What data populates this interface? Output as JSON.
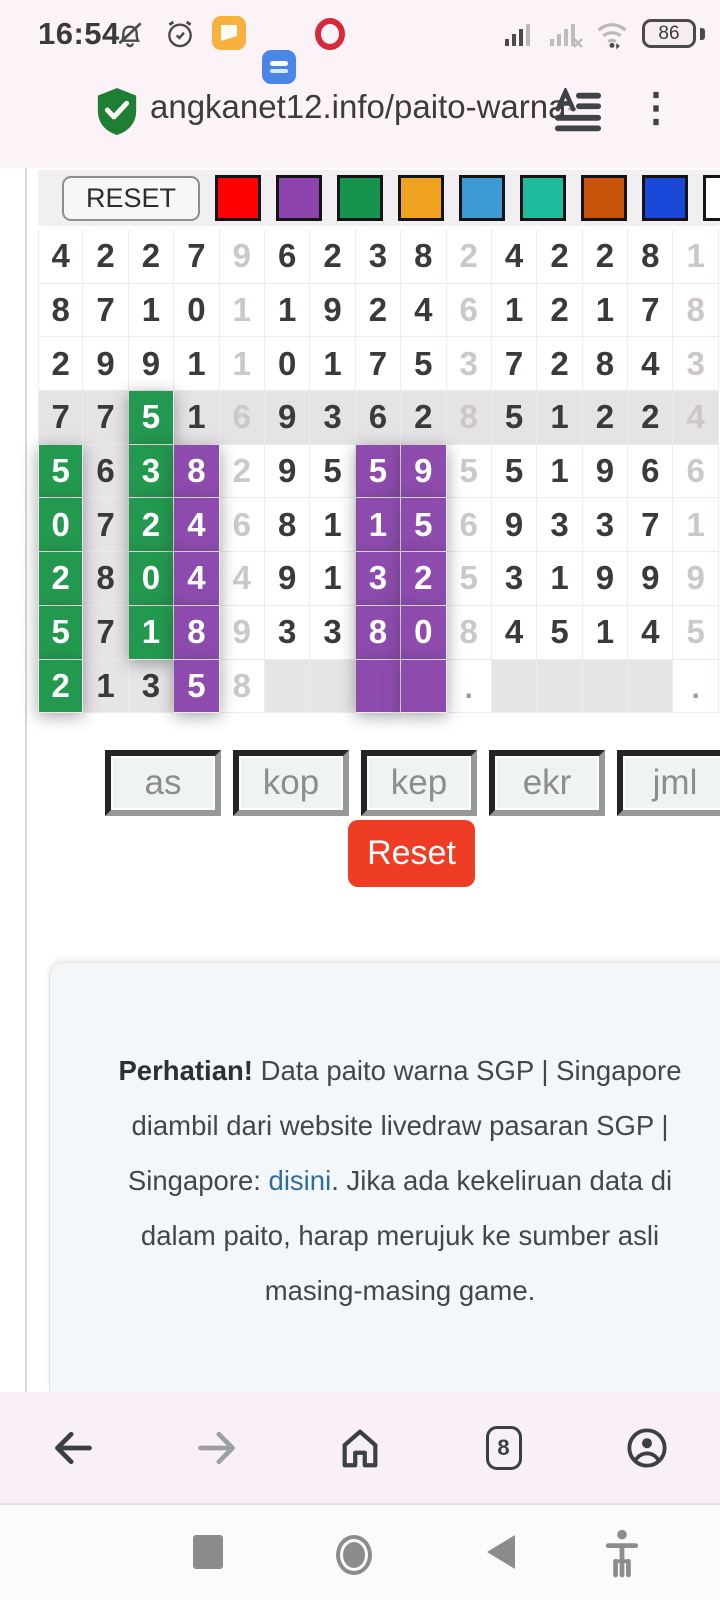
{
  "status_bar": {
    "time": "16:54",
    "battery_percent": "86",
    "icons": [
      "mute-bell-icon",
      "alarm-icon",
      "gallery-app-icon",
      "docs-app-icon",
      "opera-app-icon",
      "signal-1-icon",
      "signal-2-no-service-icon",
      "wifi-icon",
      "battery-icon"
    ]
  },
  "address_bar": {
    "url_visible": "angkanet12.info/paito-warna",
    "url_truncated": "-",
    "menu_glyph": "⋮"
  },
  "palette": {
    "reset_label": "RESET",
    "colors": [
      "#fe0000",
      "#8e44ad",
      "#17934d",
      "#f0a11f",
      "#3d9ad5",
      "#1cbc9c",
      "#c75209",
      "#1948d9",
      "#ffffff"
    ]
  },
  "grid": {
    "cell_colors": {
      "green": "#23994f",
      "purple": "#8d4bae",
      "shaded_row": "#e5e3e6"
    },
    "rows": [
      {
        "shaded": false,
        "cells": [
          [
            "4",
            ""
          ],
          [
            "2",
            ""
          ],
          [
            "2",
            ""
          ],
          [
            "7",
            ""
          ],
          [
            "9",
            "m"
          ],
          [
            "6",
            ""
          ],
          [
            "2",
            ""
          ],
          [
            "3",
            ""
          ],
          [
            "8",
            ""
          ],
          [
            "2",
            "m"
          ],
          [
            "4",
            ""
          ],
          [
            "2",
            ""
          ],
          [
            "2",
            ""
          ],
          [
            "8",
            ""
          ],
          [
            "1",
            "m"
          ]
        ]
      },
      {
        "shaded": false,
        "cells": [
          [
            "8",
            ""
          ],
          [
            "7",
            ""
          ],
          [
            "1",
            ""
          ],
          [
            "0",
            ""
          ],
          [
            "1",
            "m"
          ],
          [
            "1",
            ""
          ],
          [
            "9",
            ""
          ],
          [
            "2",
            ""
          ],
          [
            "4",
            ""
          ],
          [
            "6",
            "m"
          ],
          [
            "1",
            ""
          ],
          [
            "2",
            ""
          ],
          [
            "1",
            ""
          ],
          [
            "7",
            ""
          ],
          [
            "8",
            "m"
          ]
        ]
      },
      {
        "shaded": false,
        "cells": [
          [
            "2",
            ""
          ],
          [
            "9",
            ""
          ],
          [
            "9",
            ""
          ],
          [
            "1",
            ""
          ],
          [
            "1",
            "m"
          ],
          [
            "0",
            ""
          ],
          [
            "1",
            ""
          ],
          [
            "7",
            ""
          ],
          [
            "5",
            ""
          ],
          [
            "3",
            "m"
          ],
          [
            "7",
            ""
          ],
          [
            "2",
            ""
          ],
          [
            "8",
            ""
          ],
          [
            "4",
            ""
          ],
          [
            "3",
            "m"
          ]
        ]
      },
      {
        "shaded": true,
        "cells": [
          [
            "7",
            ""
          ],
          [
            "7",
            ""
          ],
          [
            "5",
            "g"
          ],
          [
            "1",
            ""
          ],
          [
            "6",
            "m"
          ],
          [
            "9",
            ""
          ],
          [
            "3",
            ""
          ],
          [
            "6",
            ""
          ],
          [
            "2",
            ""
          ],
          [
            "8",
            "m"
          ],
          [
            "5",
            ""
          ],
          [
            "1",
            ""
          ],
          [
            "2",
            ""
          ],
          [
            "2",
            ""
          ],
          [
            "4",
            "m"
          ]
        ]
      },
      {
        "shaded": false,
        "cells": [
          [
            "5",
            "g"
          ],
          [
            "6",
            "b"
          ],
          [
            "3",
            "g"
          ],
          [
            "8",
            "p"
          ],
          [
            "2",
            "m"
          ],
          [
            "9",
            ""
          ],
          [
            "5",
            ""
          ],
          [
            "5",
            "p"
          ],
          [
            "9",
            "p"
          ],
          [
            "5",
            "m"
          ],
          [
            "5",
            ""
          ],
          [
            "1",
            ""
          ],
          [
            "9",
            ""
          ],
          [
            "6",
            ""
          ],
          [
            "6",
            "m"
          ]
        ]
      },
      {
        "shaded": false,
        "cells": [
          [
            "0",
            "g"
          ],
          [
            "7",
            "b"
          ],
          [
            "2",
            "g"
          ],
          [
            "4",
            "p"
          ],
          [
            "6",
            "m"
          ],
          [
            "8",
            ""
          ],
          [
            "1",
            ""
          ],
          [
            "1",
            "p"
          ],
          [
            "5",
            "p"
          ],
          [
            "6",
            "m"
          ],
          [
            "9",
            ""
          ],
          [
            "3",
            ""
          ],
          [
            "3",
            ""
          ],
          [
            "7",
            ""
          ],
          [
            "1",
            "m"
          ]
        ]
      },
      {
        "shaded": false,
        "cells": [
          [
            "2",
            "g"
          ],
          [
            "8",
            "b"
          ],
          [
            "0",
            "g"
          ],
          [
            "4",
            "p"
          ],
          [
            "4",
            "m"
          ],
          [
            "9",
            ""
          ],
          [
            "1",
            ""
          ],
          [
            "3",
            "p"
          ],
          [
            "2",
            "p"
          ],
          [
            "5",
            "m"
          ],
          [
            "3",
            ""
          ],
          [
            "1",
            ""
          ],
          [
            "9",
            ""
          ],
          [
            "9",
            ""
          ],
          [
            "9",
            "m"
          ]
        ]
      },
      {
        "shaded": false,
        "cells": [
          [
            "5",
            "g"
          ],
          [
            "7",
            "b"
          ],
          [
            "1",
            "g"
          ],
          [
            "8",
            "p"
          ],
          [
            "9",
            "m"
          ],
          [
            "3",
            ""
          ],
          [
            "3",
            ""
          ],
          [
            "8",
            "p"
          ],
          [
            "0",
            "p"
          ],
          [
            "8",
            "m"
          ],
          [
            "4",
            ""
          ],
          [
            "5",
            ""
          ],
          [
            "1",
            ""
          ],
          [
            "4",
            ""
          ],
          [
            "5",
            "m"
          ]
        ]
      },
      {
        "shaded": false,
        "cells": [
          [
            "2",
            "g"
          ],
          [
            "1",
            "b"
          ],
          [
            "3",
            "b"
          ],
          [
            "5",
            "p"
          ],
          [
            "8",
            "m"
          ],
          [
            "",
            "e"
          ],
          [
            "",
            "e"
          ],
          [
            "",
            "pe"
          ],
          [
            "",
            "pe"
          ],
          [
            ".",
            "d"
          ],
          [
            "",
            "e"
          ],
          [
            "",
            "e"
          ],
          [
            "",
            "e"
          ],
          [
            "",
            "e"
          ],
          [
            ".",
            "d"
          ]
        ]
      }
    ]
  },
  "filter_buttons": [
    "as",
    "kop",
    "kep",
    "ekr",
    "jml"
  ],
  "reset_button_label": "Reset",
  "notice": {
    "lines": [
      [
        {
          "b": "Perhatian!"
        },
        {
          "t": " Data paito warna SGP | Singapore"
        }
      ],
      [
        {
          "t": "diambil dari website livedraw pasaran SGP |"
        }
      ],
      [
        {
          "t": "Singapore: "
        },
        {
          "l": "disini"
        },
        {
          "t": ". Jika ada kekeliruan data di"
        }
      ],
      [
        {
          "t": "dalam paito, harap merujuk ke sumber asli"
        }
      ],
      [
        {
          "t": "masing-masing game."
        }
      ]
    ]
  },
  "browser_nav": {
    "tab_count": "8"
  }
}
